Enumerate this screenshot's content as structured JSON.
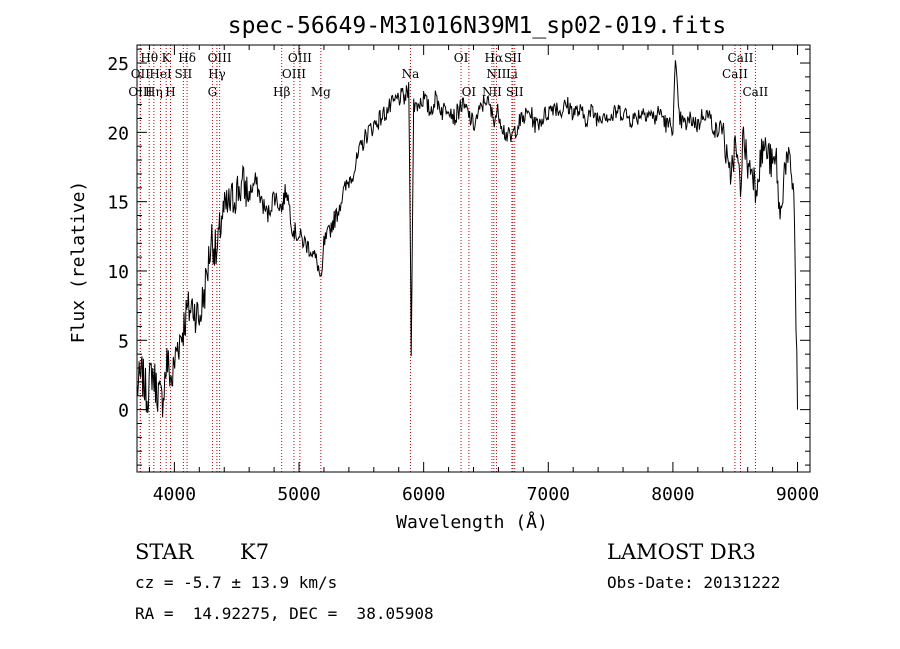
{
  "colors": {
    "spectrum": "#000000",
    "line_marker": "#c00000",
    "axis": "#000000",
    "background": "#ffffff"
  },
  "chart_data": {
    "type": "line",
    "title": "spec-56649-M31016N39M1_sp02-019.fits",
    "xlabel": "Wavelength (Å)",
    "ylabel": "Flux (relative)",
    "xlim": [
      3700,
      9100
    ],
    "ylim": [
      -4.5,
      26.3
    ],
    "xticks": [
      4000,
      5000,
      6000,
      7000,
      8000,
      9000
    ],
    "yticks": [
      0,
      5,
      10,
      15,
      20,
      25
    ],
    "grid": false,
    "series": [
      {
        "name": "flux",
        "x": [
          3700,
          3740,
          3780,
          3820,
          3860,
          3900,
          3940,
          3980,
          4020,
          4060,
          4100,
          4150,
          4200,
          4250,
          4300,
          4340,
          4380,
          4420,
          4460,
          4500,
          4550,
          4600,
          4650,
          4700,
          4750,
          4800,
          4860,
          4900,
          4950,
          5000,
          5050,
          5100,
          5150,
          5180,
          5200,
          5230,
          5270,
          5300,
          5350,
          5400,
          5450,
          5500,
          5550,
          5600,
          5650,
          5700,
          5750,
          5800,
          5850,
          5880,
          5894,
          5900,
          5910,
          5920,
          5950,
          6000,
          6050,
          6100,
          6150,
          6200,
          6250,
          6300,
          6350,
          6400,
          6450,
          6500,
          6560,
          6600,
          6650,
          6700,
          6750,
          6800,
          6850,
          6900,
          6950,
          7000,
          7050,
          7100,
          7150,
          7200,
          7250,
          7300,
          7350,
          7400,
          7450,
          7500,
          7550,
          7600,
          7650,
          7700,
          7750,
          7800,
          7850,
          7900,
          7950,
          8000,
          8020,
          8050,
          8100,
          8150,
          8200,
          8250,
          8300,
          8350,
          8400,
          8450,
          8500,
          8542,
          8560,
          8580,
          8600,
          8640,
          8662,
          8700,
          8730,
          8760,
          8800,
          8830,
          8860,
          8900,
          8940,
          8970,
          9000
        ],
        "values": [
          1.5,
          2.5,
          1.0,
          2.8,
          1.5,
          0.5,
          3.5,
          2.0,
          4.5,
          5.5,
          7.0,
          7.5,
          6.5,
          9.0,
          12.5,
          11.0,
          14.0,
          14.5,
          15.0,
          15.8,
          16.2,
          15.5,
          16.5,
          15.0,
          14.0,
          15.5,
          14.5,
          16.0,
          13.0,
          12.5,
          12.0,
          11.5,
          10.5,
          9.0,
          12.0,
          12.5,
          13.5,
          14.0,
          15.5,
          16.5,
          17.5,
          19.0,
          20.0,
          20.5,
          21.0,
          21.5,
          22.0,
          22.5,
          22.5,
          23.0,
          12.0,
          4.5,
          13.0,
          22.0,
          22.0,
          22.5,
          21.5,
          22.5,
          21.5,
          22.0,
          21.0,
          22.0,
          21.5,
          20.5,
          21.5,
          22.5,
          21.0,
          21.5,
          20.0,
          19.5,
          20.5,
          21.0,
          21.5,
          20.5,
          21.0,
          21.5,
          22.0,
          21.5,
          22.0,
          21.5,
          21.5,
          21.0,
          21.5,
          21.0,
          21.5,
          21.0,
          21.5,
          21.5,
          21.0,
          21.0,
          21.5,
          21.5,
          21.0,
          21.5,
          20.5,
          20.5,
          25.0,
          21.0,
          20.5,
          21.0,
          20.5,
          21.5,
          21.0,
          20.0,
          20.5,
          16.5,
          19.0,
          16.0,
          19.5,
          19.0,
          17.5,
          17.5,
          16.0,
          18.0,
          19.0,
          18.5,
          17.5,
          18.0,
          13.5,
          18.0,
          17.5,
          16.0,
          0.0
        ]
      }
    ],
    "spectral_lines": [
      {
        "label": "Hθ",
        "x": 3798,
        "row": 1
      },
      {
        "label": "OII",
        "x": 3727,
        "row": 2
      },
      {
        "label": "OIII",
        "x": 3727,
        "row": 3
      },
      {
        "label": "Hη",
        "x": 3835,
        "row": 3
      },
      {
        "label": "HeI",
        "x": 3889,
        "row": 2
      },
      {
        "label": "K",
        "x": 3934,
        "row": 1
      },
      {
        "label": "H",
        "x": 3969,
        "row": 3
      },
      {
        "label": "SII",
        "x": 4072,
        "row": 2
      },
      {
        "label": "Hδ",
        "x": 4102,
        "row": 1
      },
      {
        "label": "OIII",
        "x": 4363,
        "row": 1
      },
      {
        "label": "Hγ",
        "x": 4341,
        "row": 2
      },
      {
        "label": "G",
        "x": 4305,
        "row": 3
      },
      {
        "label": "Hβ",
        "x": 4861,
        "row": 3
      },
      {
        "label": "OIII",
        "x": 5007,
        "row": 1
      },
      {
        "label": "OIII",
        "x": 4959,
        "row": 2
      },
      {
        "label": "Mg",
        "x": 5175,
        "row": 3
      },
      {
        "label": "Na",
        "x": 5894,
        "row": 2
      },
      {
        "label": "OI",
        "x": 6300,
        "row": 1
      },
      {
        "label": "OI",
        "x": 6363,
        "row": 3
      },
      {
        "label": "Hα",
        "x": 6563,
        "row": 1
      },
      {
        "label": "SII",
        "x": 6716,
        "row": 1
      },
      {
        "label": "NII",
        "x": 6584,
        "row": 2
      },
      {
        "label": "Li",
        "x": 6708,
        "row": 2
      },
      {
        "label": "NII",
        "x": 6548,
        "row": 3
      },
      {
        "label": "SII",
        "x": 6731,
        "row": 3
      },
      {
        "label": "CaII",
        "x": 8542,
        "row": 1
      },
      {
        "label": "CaII",
        "x": 8498,
        "row": 2
      },
      {
        "label": "CaII",
        "x": 8662,
        "row": 3
      }
    ]
  },
  "info": {
    "class": "STAR",
    "subclass": "K7",
    "cz": "cz = -5.7 ± 13.9 km/s",
    "survey": "LAMOST DR3",
    "obs_date": "Obs-Date: 20131222",
    "coords": "RA =  14.92275, DEC =  38.05908"
  }
}
